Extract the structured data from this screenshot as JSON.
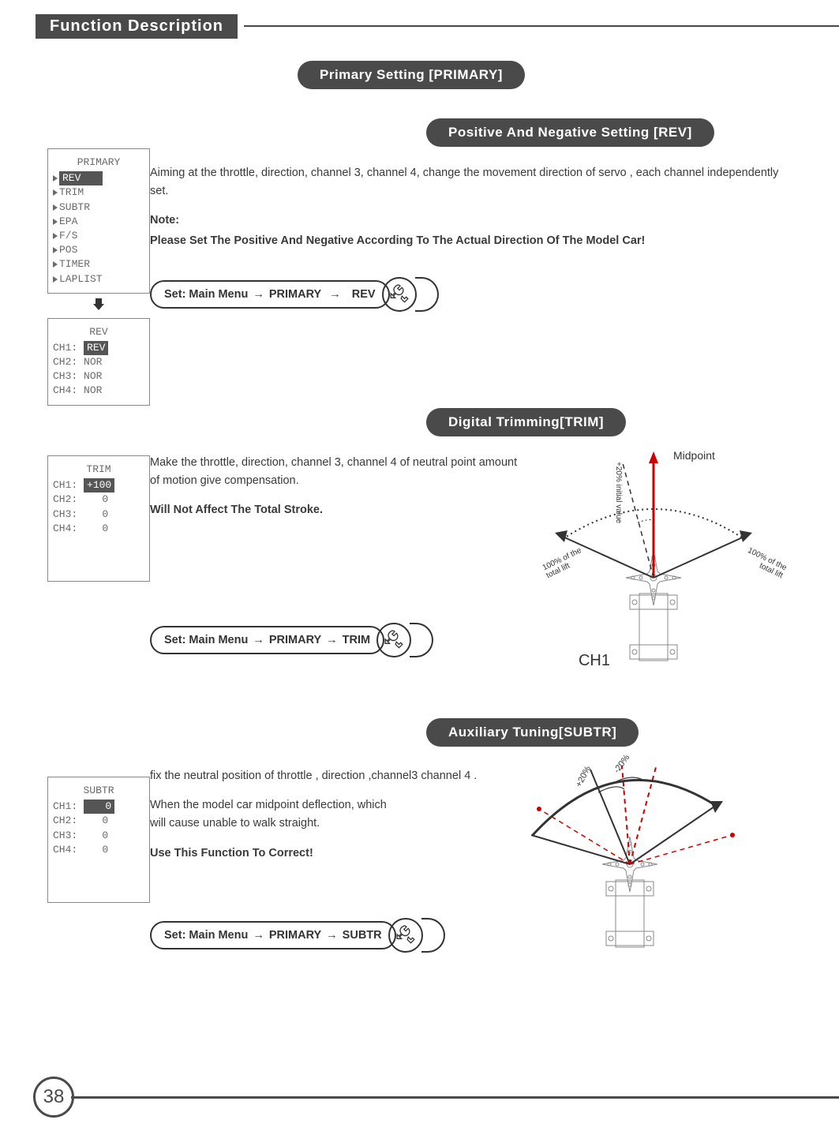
{
  "header": {
    "title": "Function Description"
  },
  "primary_pill": "Primary Setting [PRIMARY]",
  "page_number": "38",
  "rev": {
    "sub_pill": "Positive And Negative Setting [REV]",
    "menu_screen": {
      "title": "PRIMARY",
      "items": [
        "REV",
        "TRIM",
        "SUBTR",
        "EPA",
        "F/S",
        "POS",
        "TIMER",
        "LAPLIST"
      ],
      "highlighted_idx": 0
    },
    "detail_screen": {
      "title": "REV",
      "rows": [
        {
          "label": "CH1:",
          "val": "REV",
          "hl": true
        },
        {
          "label": "CH2:",
          "val": "NOR",
          "hl": false
        },
        {
          "label": "CH3:",
          "val": "NOR",
          "hl": false
        },
        {
          "label": "CH4:",
          "val": "NOR",
          "hl": false
        }
      ]
    },
    "desc1": "Aiming at the throttle, direction, channel 3, channel 4, change the movement  direction of servo , each channel independently set.",
    "note_label": "Note:",
    "note_body": "Please Set The Positive And Negative According To The Actual Direction Of The Model Car!",
    "nav": {
      "p1": "Set: Main Menu",
      "p2": "PRIMARY",
      "p3": "REV"
    }
  },
  "trim": {
    "sub_pill": "Digital Trimming[TRIM]",
    "screen": {
      "title": "TRIM",
      "rows": [
        {
          "label": "CH1:",
          "val": "+100",
          "hl": true
        },
        {
          "label": "CH2:",
          "val": "   0",
          "hl": false
        },
        {
          "label": "CH3:",
          "val": "   0",
          "hl": false
        },
        {
          "label": "CH4:",
          "val": "   0",
          "hl": false
        }
      ]
    },
    "desc1": "Make the throttle, direction, channel 3, channel 4 of neutral point amount of motion give compensation.",
    "desc2": "Will Not Affect The Total Stroke.",
    "nav": {
      "p1": "Set: Main Menu",
      "p2": "PRIMARY",
      "p3": "TRIM"
    },
    "diagram": {
      "midpoint": "Midpoint",
      "initial": "+20% initial value",
      "left_label": "100% of the total lift",
      "right_label": "100% of the total lift",
      "ch": "CH1"
    }
  },
  "subtr": {
    "sub_pill": "Auxiliary Tuning[SUBTR]",
    "screen": {
      "title": "SUBTR",
      "rows": [
        {
          "label": "CH1:",
          "val": "   0",
          "hl": true
        },
        {
          "label": "CH2:",
          "val": "   0",
          "hl": false
        },
        {
          "label": "CH3:",
          "val": "   0",
          "hl": false
        },
        {
          "label": "CH4:",
          "val": "   0",
          "hl": false
        }
      ]
    },
    "desc1": "fix the neutral position of throttle , direction ,channel3 channel 4 .",
    "desc2": "When the model car midpoint deflection, which will cause unable to walk straight.",
    "desc3": "Use This Function To Correct!",
    "nav": {
      "p1": "Set: Main Menu",
      "p2": "PRIMARY",
      "p3": "SUBTR"
    },
    "diagram": {
      "plus": "+20%",
      "minus": "-20%"
    }
  }
}
